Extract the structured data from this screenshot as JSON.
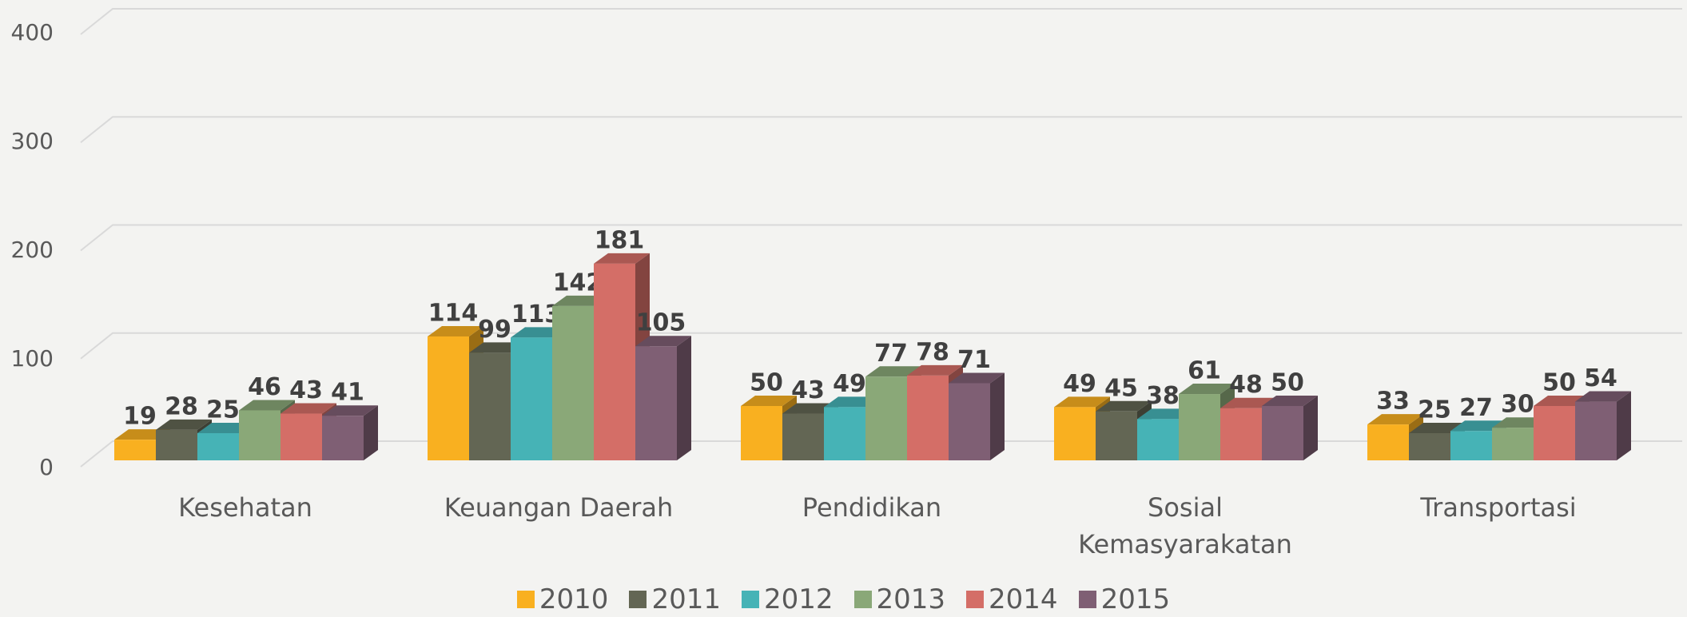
{
  "chart_data": {
    "type": "bar3d",
    "categories": [
      "Kesehatan",
      "Keuangan Daerah",
      "Pendidikan",
      "Sosial Kemasyarakatan",
      "Transportasi"
    ],
    "series": [
      {
        "name": "2010",
        "color": "#f9b020",
        "values": [
          19,
          114,
          50,
          49,
          33
        ]
      },
      {
        "name": "2011",
        "color": "#636654",
        "values": [
          28,
          99,
          43,
          45,
          25
        ]
      },
      {
        "name": "2012",
        "color": "#46b3b6",
        "values": [
          25,
          113,
          49,
          38,
          27
        ]
      },
      {
        "name": "2013",
        "color": "#8aa878",
        "values": [
          46,
          142,
          77,
          61,
          30
        ]
      },
      {
        "name": "2014",
        "color": "#d46e67",
        "values": [
          43,
          181,
          78,
          48,
          50
        ]
      },
      {
        "name": "2015",
        "color": "#7f5f74",
        "values": [
          41,
          105,
          71,
          50,
          54
        ]
      }
    ],
    "ylim": [
      0,
      400
    ],
    "yticks": [
      0,
      100,
      200,
      300,
      400
    ],
    "grid": true,
    "legend": "bottom"
  }
}
